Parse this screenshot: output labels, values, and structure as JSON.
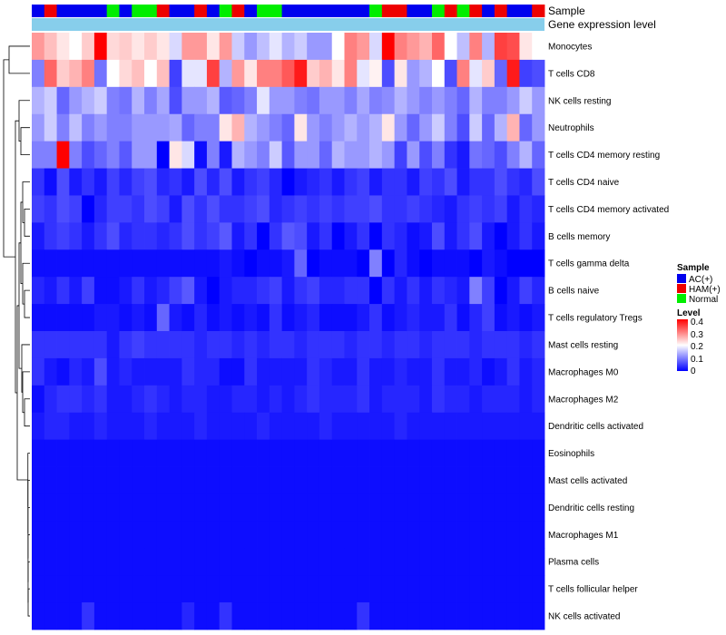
{
  "chart_data": {
    "type": "heatmap",
    "title": "",
    "column_annotations": [
      {
        "name": "Sample",
        "label": "Sample"
      },
      {
        "name": "Gene expression level",
        "label": "Gene expression level"
      }
    ],
    "sample_legend": {
      "title": "Sample",
      "entries": [
        {
          "key": "AC",
          "label": "AC(+)",
          "color": "#0000EE"
        },
        {
          "key": "HAM",
          "label": "HAM(+)",
          "color": "#EE0000"
        },
        {
          "key": "Normal",
          "label": "Normal",
          "color": "#00EE00"
        }
      ]
    },
    "level_legend": {
      "title": "Level",
      "ticks": [
        "0.4",
        "0.3",
        "0.2",
        "0.1",
        "0"
      ],
      "range": [
        0,
        0.4
      ],
      "colors": [
        "#0000FF",
        "#FFFFFF",
        "#FF0000"
      ]
    },
    "gene_expression_color": "#87CEEB",
    "samples": [
      "AC",
      "HAM",
      "AC",
      "AC",
      "AC",
      "AC",
      "Normal",
      "AC",
      "Normal",
      "Normal",
      "HAM",
      "AC",
      "AC",
      "HAM",
      "AC",
      "Normal",
      "HAM",
      "AC",
      "Normal",
      "Normal",
      "AC",
      "AC",
      "AC",
      "AC",
      "AC",
      "AC",
      "AC",
      "Normal",
      "HAM",
      "HAM",
      "AC",
      "AC",
      "Normal",
      "HAM",
      "Normal",
      "HAM",
      "AC",
      "HAM",
      "AC",
      "AC",
      "HAM"
    ],
    "rows": [
      "Monocytes",
      "T cells CD8",
      "NK cells resting",
      "Neutrophils",
      "T cells CD4 memory resting",
      "T cells CD4 naive",
      "T cells CD4 memory activated",
      "B cells memory",
      "T cells gamma delta",
      "B cells naive",
      "T cells regulatory  Tregs",
      "Mast cells resting",
      "Macrophages M0",
      "Macrophages M2",
      "Dendritic cells activated",
      "Eosinophils",
      "Mast cells activated",
      "Dendritic cells resting",
      "Macrophages M1",
      "Plasma cells",
      "T cells follicular helper",
      "NK cells activated"
    ],
    "values": [
      [
        0.28,
        0.25,
        0.22,
        0.2,
        0.24,
        0.4,
        0.23,
        0.24,
        0.22,
        0.24,
        0.22,
        0.17,
        0.28,
        0.28,
        0.22,
        0.28,
        0.16,
        0.12,
        0.15,
        0.18,
        0.14,
        0.16,
        0.12,
        0.12,
        0.2,
        0.3,
        0.28,
        0.17,
        0.4,
        0.3,
        0.28,
        0.26,
        0.32,
        0.2,
        0.15,
        0.3,
        0.14,
        0.35,
        0.34,
        0.22,
        0.2
      ],
      [
        0.1,
        0.32,
        0.24,
        0.26,
        0.3,
        0.09,
        0.2,
        0.23,
        0.25,
        0.2,
        0.25,
        0.05,
        0.18,
        0.18,
        0.35,
        0.14,
        0.28,
        0.22,
        0.3,
        0.3,
        0.33,
        0.38,
        0.24,
        0.26,
        0.22,
        0.3,
        0.18,
        0.21,
        0.06,
        0.22,
        0.12,
        0.14,
        0.2,
        0.06,
        0.3,
        0.18,
        0.24,
        0.08,
        0.38,
        0.05,
        0.06
      ],
      [
        0.14,
        0.16,
        0.08,
        0.12,
        0.14,
        0.16,
        0.1,
        0.09,
        0.14,
        0.1,
        0.13,
        0.06,
        0.12,
        0.12,
        0.14,
        0.07,
        0.08,
        0.1,
        0.18,
        0.12,
        0.12,
        0.1,
        0.09,
        0.12,
        0.12,
        0.1,
        0.13,
        0.1,
        0.11,
        0.14,
        0.12,
        0.1,
        0.12,
        0.1,
        0.08,
        0.14,
        0.1,
        0.1,
        0.12,
        0.16,
        0.12
      ],
      [
        0.12,
        0.16,
        0.1,
        0.15,
        0.1,
        0.12,
        0.1,
        0.1,
        0.12,
        0.12,
        0.12,
        0.13,
        0.08,
        0.1,
        0.1,
        0.22,
        0.26,
        0.14,
        0.12,
        0.1,
        0.08,
        0.22,
        0.12,
        0.1,
        0.12,
        0.14,
        0.12,
        0.14,
        0.22,
        0.12,
        0.08,
        0.12,
        0.16,
        0.1,
        0.06,
        0.16,
        0.08,
        0.14,
        0.26,
        0.08,
        0.12
      ],
      [
        0.1,
        0.1,
        0.4,
        0.1,
        0.06,
        0.08,
        0.1,
        0.07,
        0.12,
        0.12,
        0.0,
        0.22,
        0.17,
        0.01,
        0.1,
        0.02,
        0.14,
        0.12,
        0.1,
        0.16,
        0.07,
        0.12,
        0.12,
        0.08,
        0.14,
        0.12,
        0.12,
        0.14,
        0.12,
        0.05,
        0.12,
        0.06,
        0.1,
        0.04,
        0.02,
        0.09,
        0.08,
        0.06,
        0.1,
        0.14,
        0.08
      ],
      [
        0.04,
        0.01,
        0.06,
        0.02,
        0.04,
        0.02,
        0.05,
        0.03,
        0.05,
        0.06,
        0.03,
        0.04,
        0.02,
        0.06,
        0.03,
        0.06,
        0.02,
        0.04,
        0.05,
        0.03,
        0.0,
        0.02,
        0.03,
        0.04,
        0.02,
        0.04,
        0.05,
        0.02,
        0.04,
        0.04,
        0.02,
        0.05,
        0.04,
        0.06,
        0.02,
        0.04,
        0.04,
        0.06,
        0.04,
        0.03,
        0.06
      ],
      [
        0.05,
        0.04,
        0.06,
        0.05,
        0.0,
        0.03,
        0.05,
        0.05,
        0.04,
        0.06,
        0.05,
        0.02,
        0.06,
        0.04,
        0.06,
        0.04,
        0.04,
        0.05,
        0.06,
        0.03,
        0.04,
        0.05,
        0.04,
        0.05,
        0.04,
        0.05,
        0.05,
        0.06,
        0.04,
        0.04,
        0.05,
        0.04,
        0.03,
        0.02,
        0.04,
        0.05,
        0.04,
        0.05,
        0.02,
        0.04,
        0.03
      ],
      [
        0.02,
        0.04,
        0.05,
        0.04,
        0.02,
        0.04,
        0.06,
        0.03,
        0.04,
        0.04,
        0.03,
        0.04,
        0.06,
        0.04,
        0.05,
        0.07,
        0.02,
        0.04,
        0.0,
        0.04,
        0.07,
        0.06,
        0.02,
        0.04,
        0.0,
        0.02,
        0.04,
        0.0,
        0.04,
        0.03,
        0.01,
        0.02,
        0.06,
        0.02,
        0.04,
        0.06,
        0.02,
        0.0,
        0.02,
        0.04,
        0.02
      ],
      [
        0.01,
        0.01,
        0.01,
        0.01,
        0.01,
        0.01,
        0.01,
        0.01,
        0.01,
        0.01,
        0.01,
        0.01,
        0.01,
        0.01,
        0.01,
        0.02,
        0.01,
        0.0,
        0.01,
        0.01,
        0.02,
        0.08,
        0.0,
        0.01,
        0.01,
        0.01,
        0.0,
        0.1,
        0.0,
        0.03,
        0.01,
        0.0,
        0.01,
        0.01,
        0.01,
        0.0,
        0.02,
        0.01,
        0.0,
        0.0,
        0.0
      ],
      [
        0.03,
        0.02,
        0.04,
        0.02,
        0.05,
        0.01,
        0.01,
        0.02,
        0.04,
        0.02,
        0.03,
        0.05,
        0.07,
        0.02,
        0.0,
        0.02,
        0.03,
        0.03,
        0.04,
        0.05,
        0.02,
        0.04,
        0.05,
        0.03,
        0.03,
        0.04,
        0.04,
        0.0,
        0.04,
        0.02,
        0.04,
        0.02,
        0.04,
        0.03,
        0.02,
        0.1,
        0.05,
        0.0,
        0.02,
        0.05,
        0.03
      ],
      [
        0.01,
        0.01,
        0.01,
        0.01,
        0.01,
        0.02,
        0.02,
        0.01,
        0.02,
        0.01,
        0.08,
        0.02,
        0.01,
        0.03,
        0.01,
        0.02,
        0.01,
        0.02,
        0.01,
        0.04,
        0.01,
        0.02,
        0.03,
        0.01,
        0.01,
        0.01,
        0.02,
        0.04,
        0.01,
        0.02,
        0.03,
        0.02,
        0.02,
        0.04,
        0.01,
        0.03,
        0.05,
        0.01,
        0.02,
        0.01,
        0.02
      ],
      [
        0.04,
        0.04,
        0.04,
        0.04,
        0.04,
        0.04,
        0.02,
        0.04,
        0.05,
        0.04,
        0.04,
        0.04,
        0.04,
        0.03,
        0.04,
        0.04,
        0.03,
        0.04,
        0.03,
        0.04,
        0.04,
        0.03,
        0.04,
        0.04,
        0.04,
        0.03,
        0.04,
        0.04,
        0.03,
        0.04,
        0.04,
        0.03,
        0.04,
        0.04,
        0.04,
        0.03,
        0.04,
        0.04,
        0.04,
        0.03,
        0.04
      ],
      [
        0.04,
        0.02,
        0.01,
        0.03,
        0.02,
        0.06,
        0.02,
        0.03,
        0.02,
        0.02,
        0.02,
        0.02,
        0.04,
        0.03,
        0.03,
        0.01,
        0.01,
        0.04,
        0.02,
        0.02,
        0.02,
        0.02,
        0.04,
        0.03,
        0.02,
        0.02,
        0.04,
        0.02,
        0.02,
        0.03,
        0.02,
        0.02,
        0.04,
        0.02,
        0.02,
        0.03,
        0.01,
        0.02,
        0.04,
        0.02,
        0.03
      ],
      [
        0.01,
        0.03,
        0.04,
        0.04,
        0.03,
        0.04,
        0.02,
        0.02,
        0.03,
        0.04,
        0.03,
        0.02,
        0.03,
        0.03,
        0.02,
        0.02,
        0.03,
        0.03,
        0.02,
        0.03,
        0.02,
        0.03,
        0.04,
        0.03,
        0.03,
        0.03,
        0.04,
        0.02,
        0.03,
        0.03,
        0.03,
        0.02,
        0.04,
        0.03,
        0.03,
        0.02,
        0.03,
        0.03,
        0.03,
        0.02,
        0.03
      ],
      [
        0.02,
        0.03,
        0.03,
        0.02,
        0.02,
        0.03,
        0.02,
        0.02,
        0.02,
        0.03,
        0.02,
        0.02,
        0.02,
        0.03,
        0.02,
        0.02,
        0.02,
        0.02,
        0.03,
        0.02,
        0.02,
        0.02,
        0.02,
        0.03,
        0.02,
        0.02,
        0.02,
        0.02,
        0.02,
        0.03,
        0.02,
        0.02,
        0.02,
        0.02,
        0.02,
        0.02,
        0.02,
        0.02,
        0.02,
        0.02,
        0.02
      ],
      [
        0.01,
        0.01,
        0.01,
        0.01,
        0.01,
        0.01,
        0.01,
        0.01,
        0.01,
        0.01,
        0.01,
        0.01,
        0.01,
        0.01,
        0.01,
        0.01,
        0.01,
        0.01,
        0.01,
        0.01,
        0.01,
        0.01,
        0.01,
        0.01,
        0.01,
        0.01,
        0.01,
        0.01,
        0.01,
        0.01,
        0.01,
        0.01,
        0.01,
        0.01,
        0.01,
        0.01,
        0.01,
        0.01,
        0.01,
        0.01,
        0.01
      ],
      [
        0.01,
        0.01,
        0.01,
        0.01,
        0.01,
        0.01,
        0.01,
        0.01,
        0.01,
        0.01,
        0.01,
        0.01,
        0.01,
        0.01,
        0.01,
        0.01,
        0.01,
        0.01,
        0.01,
        0.01,
        0.01,
        0.01,
        0.01,
        0.01,
        0.01,
        0.01,
        0.01,
        0.01,
        0.01,
        0.01,
        0.01,
        0.01,
        0.01,
        0.01,
        0.01,
        0.01,
        0.01,
        0.01,
        0.01,
        0.01,
        0.01
      ],
      [
        0.01,
        0.01,
        0.01,
        0.01,
        0.01,
        0.01,
        0.01,
        0.01,
        0.01,
        0.01,
        0.01,
        0.01,
        0.01,
        0.01,
        0.01,
        0.01,
        0.01,
        0.01,
        0.01,
        0.01,
        0.01,
        0.01,
        0.01,
        0.01,
        0.01,
        0.01,
        0.01,
        0.01,
        0.01,
        0.01,
        0.01,
        0.01,
        0.01,
        0.01,
        0.01,
        0.01,
        0.01,
        0.01,
        0.01,
        0.01,
        0.01
      ],
      [
        0.01,
        0.01,
        0.01,
        0.01,
        0.01,
        0.01,
        0.01,
        0.01,
        0.01,
        0.01,
        0.01,
        0.01,
        0.01,
        0.01,
        0.01,
        0.01,
        0.01,
        0.01,
        0.01,
        0.01,
        0.01,
        0.01,
        0.01,
        0.01,
        0.01,
        0.01,
        0.01,
        0.01,
        0.01,
        0.01,
        0.01,
        0.01,
        0.01,
        0.01,
        0.01,
        0.01,
        0.01,
        0.01,
        0.01,
        0.01,
        0.01
      ],
      [
        0.01,
        0.01,
        0.01,
        0.01,
        0.01,
        0.01,
        0.01,
        0.01,
        0.01,
        0.01,
        0.01,
        0.01,
        0.01,
        0.01,
        0.01,
        0.01,
        0.01,
        0.01,
        0.01,
        0.01,
        0.01,
        0.01,
        0.01,
        0.01,
        0.01,
        0.01,
        0.01,
        0.01,
        0.01,
        0.01,
        0.01,
        0.01,
        0.01,
        0.01,
        0.01,
        0.01,
        0.01,
        0.01,
        0.01,
        0.01,
        0.01
      ],
      [
        0.01,
        0.01,
        0.01,
        0.01,
        0.01,
        0.01,
        0.01,
        0.01,
        0.01,
        0.01,
        0.01,
        0.01,
        0.01,
        0.01,
        0.01,
        0.01,
        0.01,
        0.01,
        0.01,
        0.01,
        0.01,
        0.01,
        0.01,
        0.01,
        0.01,
        0.01,
        0.01,
        0.01,
        0.01,
        0.01,
        0.01,
        0.01,
        0.01,
        0.01,
        0.01,
        0.01,
        0.01,
        0.01,
        0.01,
        0.01,
        0.01
      ],
      [
        0.01,
        0.01,
        0.01,
        0.01,
        0.04,
        0.01,
        0.01,
        0.01,
        0.01,
        0.01,
        0.01,
        0.01,
        0.03,
        0.01,
        0.01,
        0.04,
        0.01,
        0.01,
        0.01,
        0.01,
        0.01,
        0.01,
        0.01,
        0.01,
        0.01,
        0.01,
        0.04,
        0.01,
        0.01,
        0.01,
        0.01,
        0.01,
        0.01,
        0.01,
        0.01,
        0.01,
        0.01,
        0.01,
        0.01,
        0.01,
        0.01
      ]
    ]
  }
}
